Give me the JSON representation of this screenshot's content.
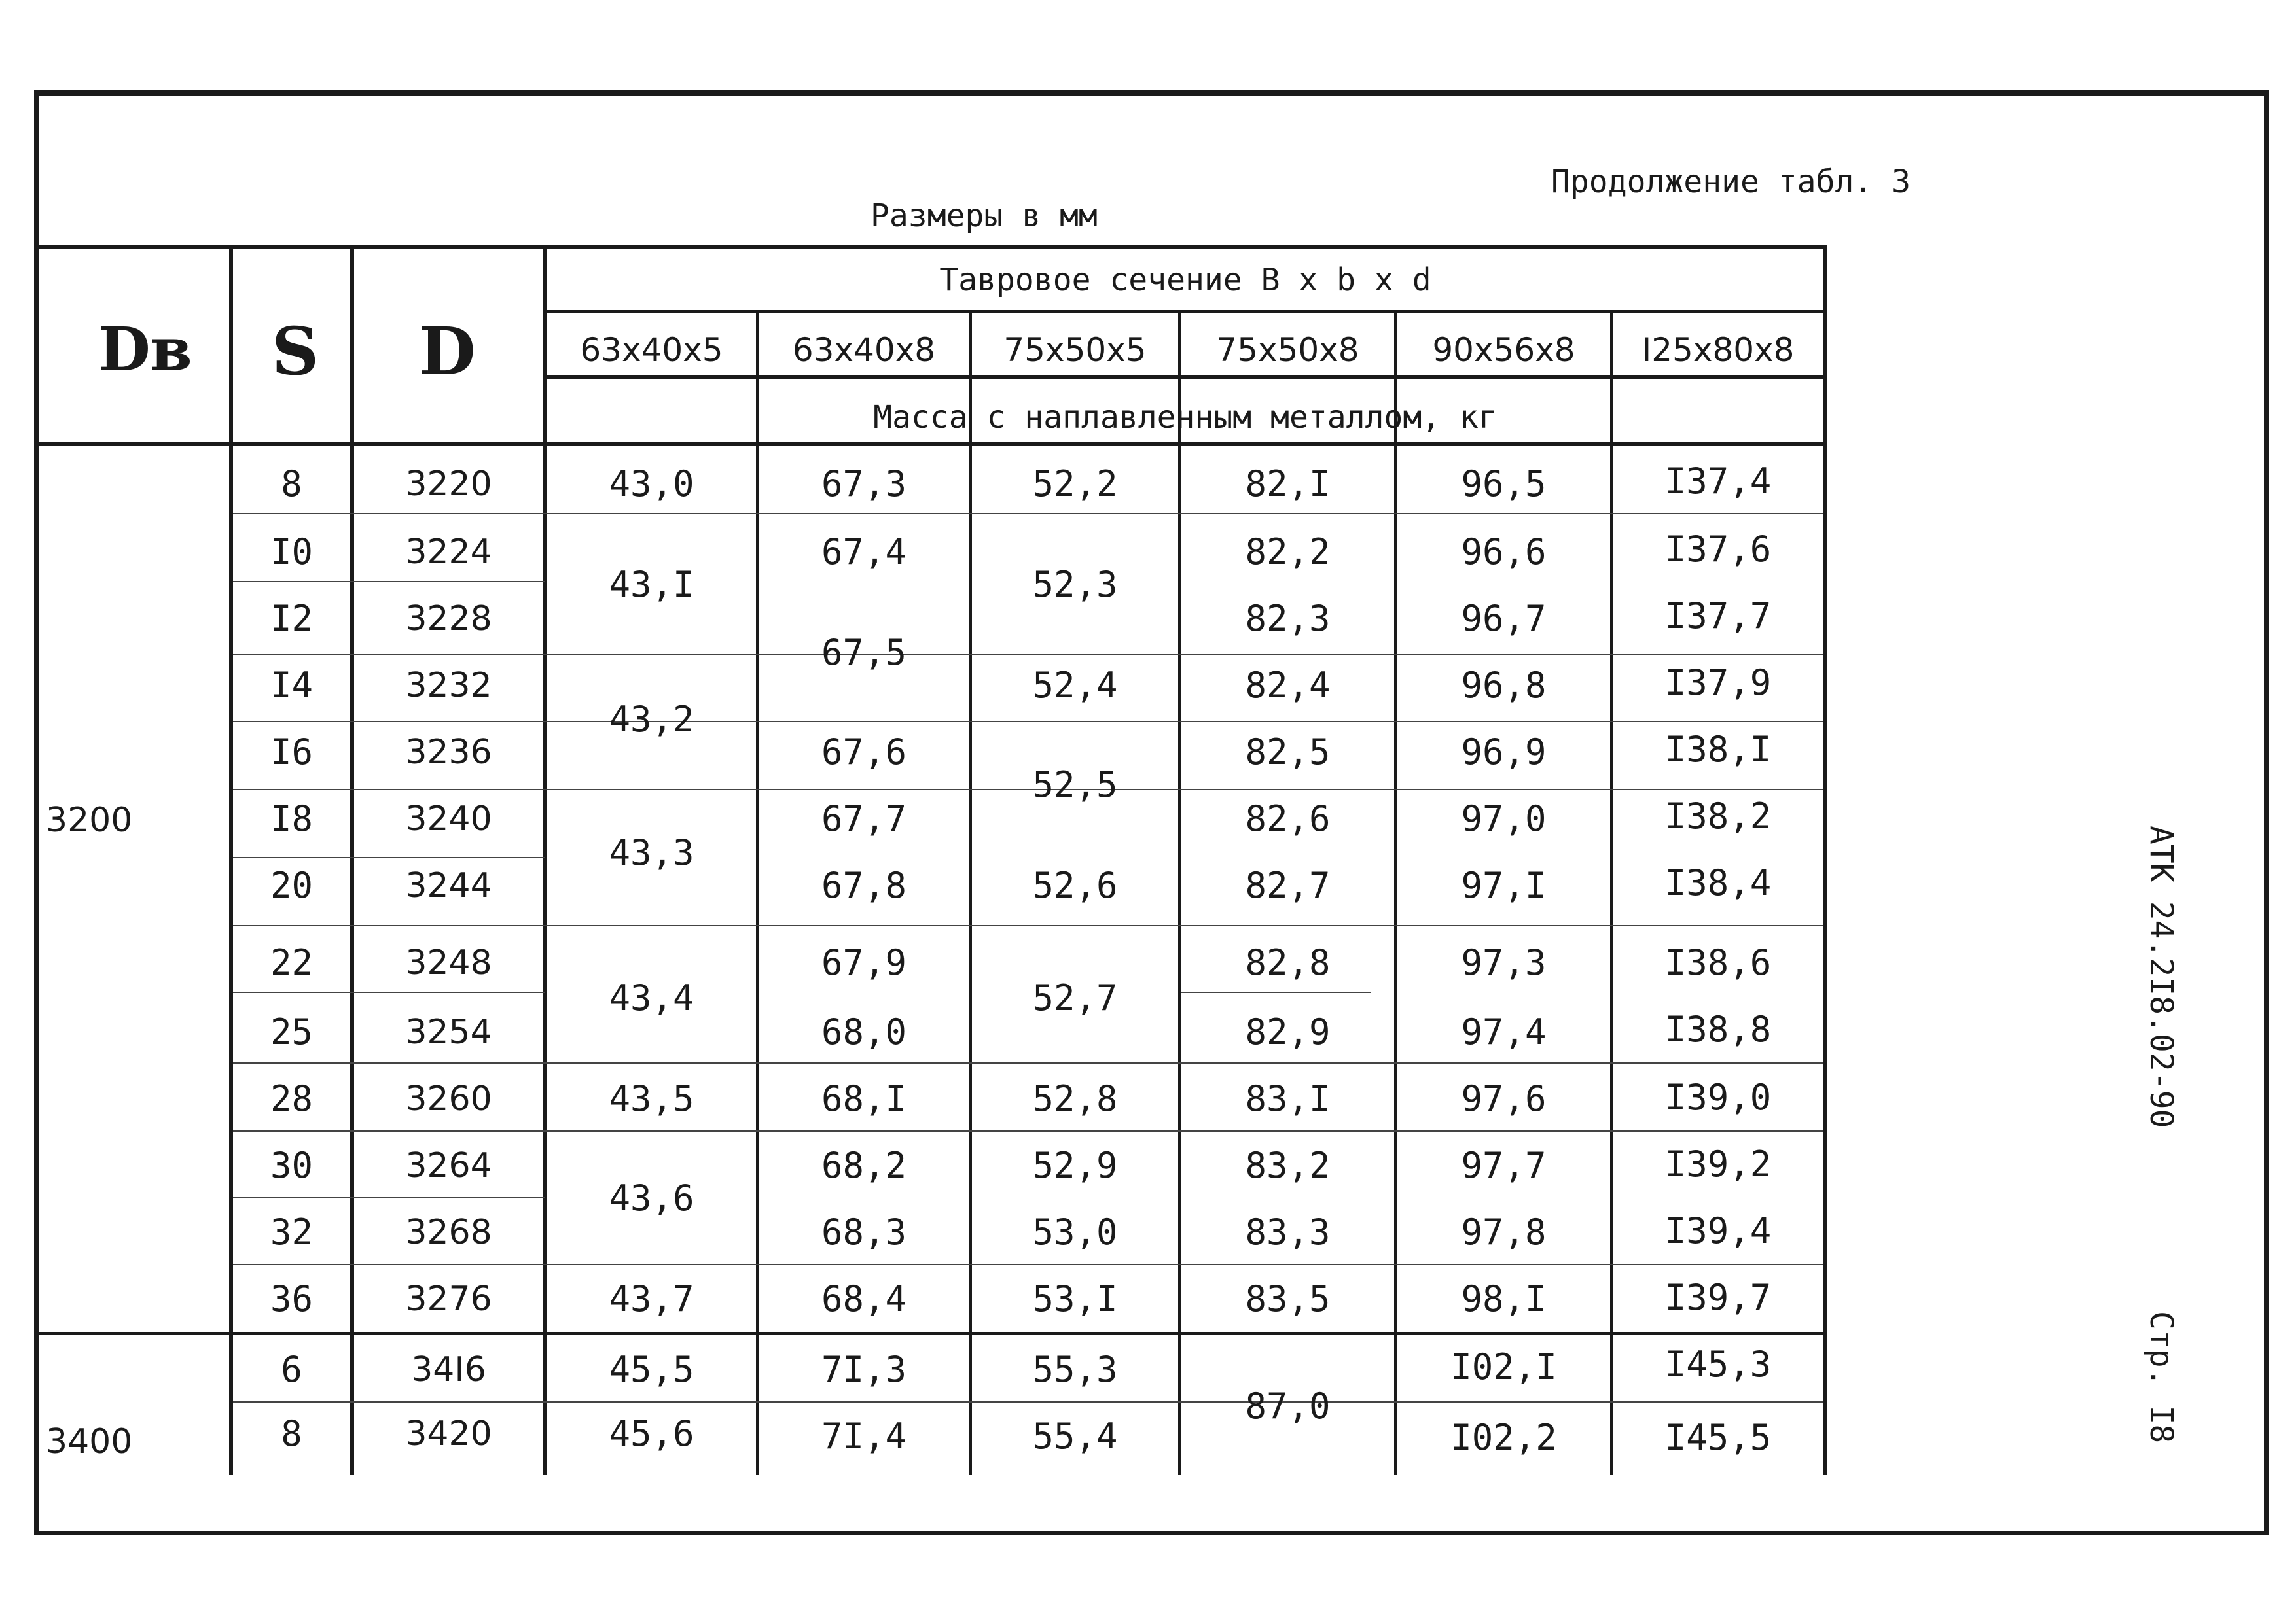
{
  "continuation": "Продолжение табл. 3",
  "units": "Размеры в мм",
  "header": {
    "col_dv": "Dв",
    "col_s": "S",
    "col_d": "D",
    "group_title": "Тавровое сечение  B x b x d",
    "sizes": [
      "63x40x5",
      "63x40x8",
      "75x50x5",
      "75x50x8",
      "90x56x8",
      "I25x80x8"
    ],
    "mass_title": "Масса с наплавленным металлом, кг"
  },
  "dv_values": [
    "3200",
    "3400"
  ],
  "rows": [
    {
      "s": "8",
      "d": "3220"
    },
    {
      "s": "I0",
      "d": "3224"
    },
    {
      "s": "I2",
      "d": "3228"
    },
    {
      "s": "I4",
      "d": "3232"
    },
    {
      "s": "I6",
      "d": "3236"
    },
    {
      "s": "I8",
      "d": "3240"
    },
    {
      "s": "20",
      "d": "3244"
    },
    {
      "s": "22",
      "d": "3248"
    },
    {
      "s": "25",
      "d": "3254"
    },
    {
      "s": "28",
      "d": "3260"
    },
    {
      "s": "30",
      "d": "3264"
    },
    {
      "s": "32",
      "d": "3268"
    },
    {
      "s": "36",
      "d": "3276"
    },
    {
      "s": "6",
      "d": "34I6"
    },
    {
      "s": "8",
      "d": "3420"
    }
  ],
  "col1": [
    "43,0",
    "43,I",
    "43,2",
    "43,3",
    "43,4",
    "43,5",
    "43,6",
    "43,7",
    "45,5",
    "45,6"
  ],
  "col2": [
    "67,3",
    "67,4",
    "67,5",
    "67,6",
    "67,7",
    "67,8",
    "67,9",
    "68,0",
    "68,I",
    "68,2",
    "68,3",
    "68,4",
    "7I,3",
    "7I,4"
  ],
  "col3": [
    "52,2",
    "52,3",
    "52,4",
    "52,5",
    "52,6",
    "52,7",
    "52,8",
    "52,9",
    "53,0",
    "53,I",
    "55,3",
    "55,4"
  ],
  "col4": [
    "82,I",
    "82,2",
    "82,3",
    "82,4",
    "82,5",
    "82,6",
    "82,7",
    "82,8",
    "82,9",
    "83,I",
    "83,2",
    "83,3",
    "83,5",
    "87,0"
  ],
  "col5": [
    "96,5",
    "96,6",
    "96,7",
    "96,8",
    "96,9",
    "97,0",
    "97,I",
    "97,3",
    "97,4",
    "97,6",
    "97,7",
    "97,8",
    "98,I",
    "I02,I",
    "I02,2"
  ],
  "col6": [
    "I37,4",
    "I37,6",
    "I37,7",
    "I37,9",
    "I38,I",
    "I38,2",
    "I38,4",
    "I38,6",
    "I38,8",
    "I39,0",
    "I39,2",
    "I39,4",
    "I39,7",
    "I45,3",
    "I45,5"
  ],
  "side_doc": "АТК 24.2I8.02-90",
  "side_page": "Стр. I8"
}
